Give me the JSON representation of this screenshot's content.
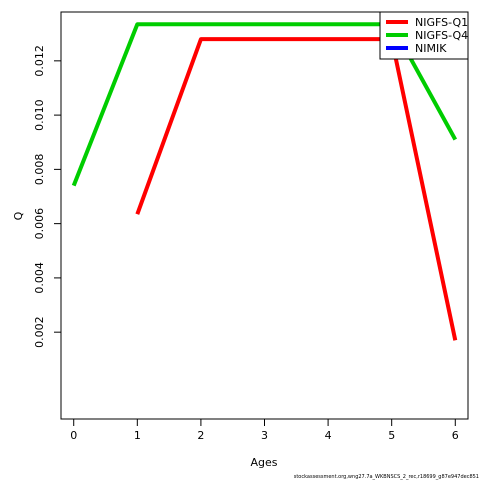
{
  "chart_data": {
    "type": "line",
    "xlabel": "Ages",
    "ylabel": "Q",
    "x": [
      0,
      1,
      2,
      3,
      4,
      5,
      6
    ],
    "xlim": [
      -0.2,
      6.2
    ],
    "ylim": [
      -0.0012,
      0.0138
    ],
    "x_ticks": [
      "0",
      "1",
      "2",
      "3",
      "4",
      "5",
      "6"
    ],
    "y_ticks": [
      "0.002",
      "0.004",
      "0.006",
      "0.008",
      "0.010",
      "0.012"
    ],
    "y_tick_values": [
      0.002,
      0.004,
      0.006,
      0.008,
      0.01,
      0.012
    ],
    "legend_position": "top-right",
    "grid": false,
    "series": [
      {
        "name": "NIGFS-Q1",
        "color": "#ff0000",
        "points": [
          [
            1,
            0.00635
          ],
          [
            2,
            0.0128
          ],
          [
            3,
            0.0128
          ],
          [
            4,
            0.0128
          ],
          [
            5,
            0.0128
          ],
          [
            6,
            0.0017
          ]
        ]
      },
      {
        "name": "NIGFS-Q4",
        "color": "#00cd00",
        "points": [
          [
            0,
            0.0074
          ],
          [
            1,
            0.01335
          ],
          [
            2,
            0.01335
          ],
          [
            3,
            0.01335
          ],
          [
            4,
            0.01335
          ],
          [
            5,
            0.01335
          ],
          [
            6,
            0.0091
          ]
        ]
      },
      {
        "name": "NIMIK",
        "color": "#0000ff",
        "points": []
      }
    ]
  },
  "footer": "stockassessment.org,wng27.7a_WKBNSCS_2_rec,r18699_g87e947dec851"
}
